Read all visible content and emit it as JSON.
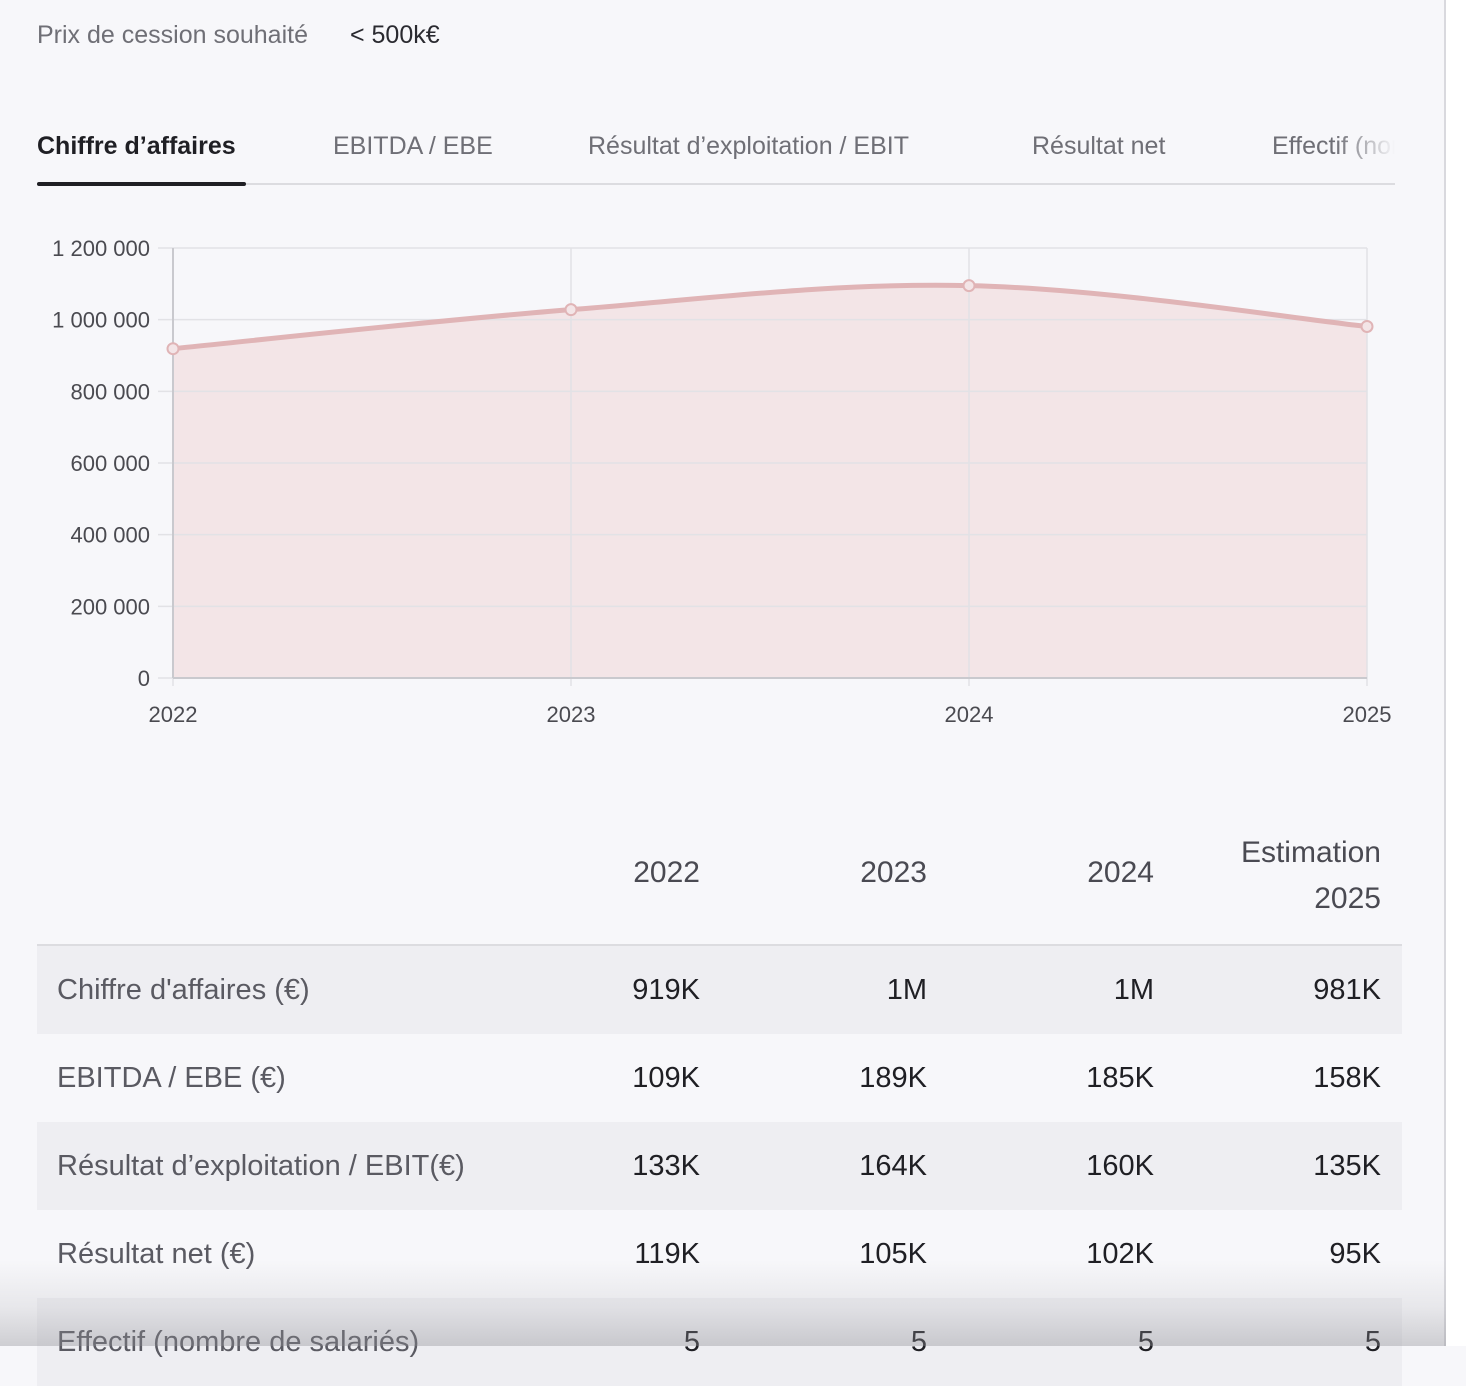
{
  "price": {
    "label": "Prix de cession souhaité",
    "value": "< 500k€"
  },
  "tabs": [
    {
      "label": "Chiffre d’affaires",
      "active": true
    },
    {
      "label": "EBITDA / EBE",
      "active": false
    },
    {
      "label": "Résultat d’exploitation / EBIT",
      "active": false
    },
    {
      "label": "Résultat net",
      "active": false
    },
    {
      "label": "Effectif (nombre de salariés)",
      "active": false
    }
  ],
  "chart_data": {
    "type": "area",
    "title": "",
    "xlabel": "",
    "ylabel": "",
    "x": [
      "2022",
      "2023",
      "2024",
      "2025"
    ],
    "series": [
      {
        "values": [
          919000,
          1028000,
          1095000,
          981000
        ]
      }
    ],
    "ylim": [
      0,
      1200000
    ],
    "yticks": [
      0,
      200000,
      400000,
      600000,
      800000,
      1000000,
      1200000
    ],
    "ytick_labels": [
      "0",
      "200 000",
      "400 000",
      "600 000",
      "800 000",
      "1 000 000",
      "1 200 000"
    ],
    "grid": true,
    "line_color": "#e0b4b6",
    "fill_color": "#f3e5e7",
    "grid_color": "#e2e2e6"
  },
  "table": {
    "headers": [
      "2022",
      "2023",
      "2024"
    ],
    "estimate_header": [
      "Estimation",
      "2025"
    ],
    "rows": [
      {
        "label": "Chiffre d'affaires (€)",
        "values": [
          "919K",
          "1M",
          "1M",
          "981K"
        ]
      },
      {
        "label": "EBITDA / EBE (€)",
        "values": [
          "109K",
          "189K",
          "185K",
          "158K"
        ]
      },
      {
        "label": "Résultat d’exploitation / EBIT(€)",
        "values": [
          "133K",
          "164K",
          "160K",
          "135K"
        ]
      },
      {
        "label": "Résultat net (€)",
        "values": [
          "119K",
          "105K",
          "102K",
          "95K"
        ]
      },
      {
        "label": "Effectif (nombre de salariés)",
        "values": [
          "5",
          "5",
          "5",
          "5"
        ]
      }
    ]
  }
}
